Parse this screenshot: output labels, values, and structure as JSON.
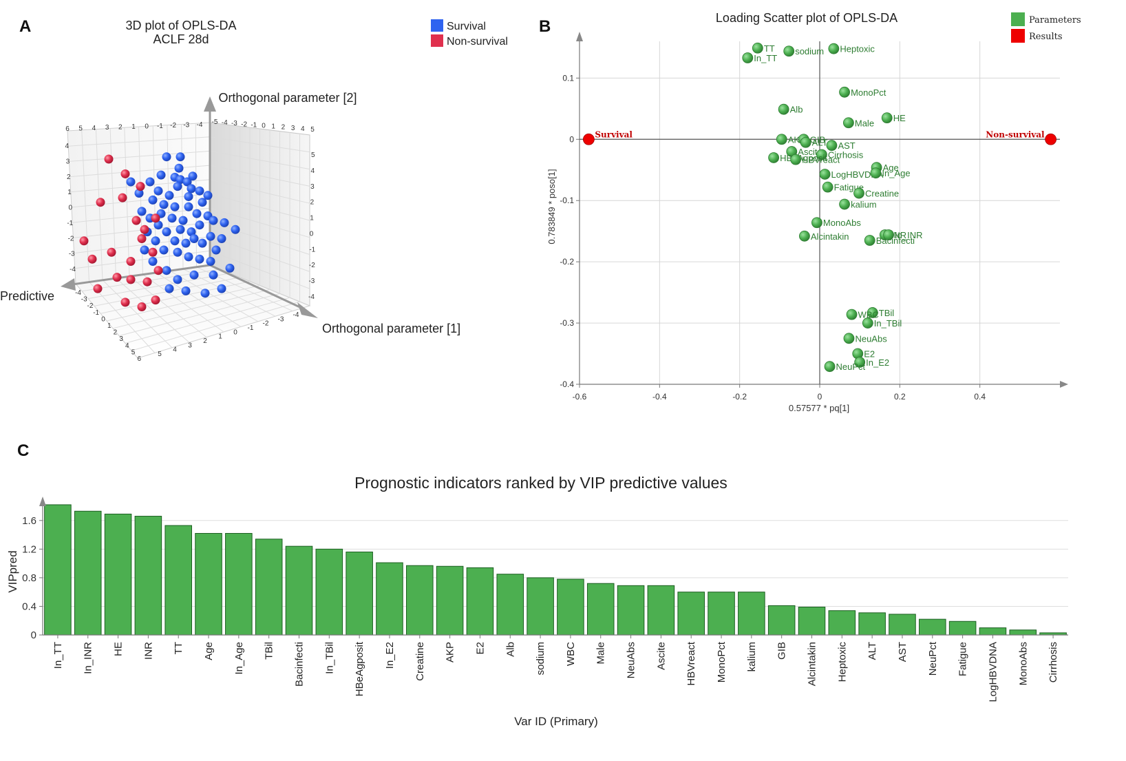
{
  "panels": {
    "a": "A",
    "b": "B",
    "c": "C"
  },
  "colors": {
    "survival": "#2f63f0",
    "non_survival": "#e0304e",
    "parameters": "#4caf50",
    "results": "#ee0000",
    "bar": "#4caf50"
  },
  "chart_data": [
    {
      "type": "scatter",
      "title": "3D plot of OPLS-DA",
      "subtitle": "ACLF 28d",
      "legend": [
        "Survival",
        "Non-survival"
      ],
      "axis_labels": {
        "vertical": "Orthogonal parameter [2]",
        "left": "Predictive",
        "right": "Orthogonal parameter [1]"
      },
      "back_top_ticks": [
        "6",
        "5",
        "4",
        "3",
        "2",
        "1",
        "0",
        "-1",
        "-2",
        "-3",
        "-4"
      ],
      "right_top_ticks": [
        "-5",
        "-4",
        "-3",
        "-2",
        "-1",
        "0",
        "1",
        "2",
        "3",
        "4",
        "5"
      ],
      "left_wall_ticks": [
        "4",
        "3",
        "2",
        "1",
        "0",
        "-1",
        "-2",
        "-3",
        "-4"
      ],
      "right_wall_ticks": [
        "5",
        "4",
        "3",
        "2",
        "1",
        "0",
        "-1",
        "-2",
        "-3",
        "-4"
      ],
      "floor_front_ticks": [
        "-4",
        "-3",
        "-2",
        "-1",
        "0",
        "1",
        "2",
        "3",
        "4",
        "5",
        "6"
      ],
      "floor_right_ticks": [
        "5",
        "4",
        "3",
        "2",
        "1",
        "0",
        "-1",
        "-2",
        "-3",
        "-4"
      ],
      "survival_points": [
        [
          0.56,
          0.62
        ],
        [
          0.65,
          0.52
        ],
        [
          0.62,
          0.44
        ],
        [
          0.66,
          0.42
        ],
        [
          0.64,
          0.36
        ],
        [
          0.71,
          0.4
        ],
        [
          0.75,
          0.45
        ],
        [
          0.74,
          0.34
        ],
        [
          0.8,
          0.32
        ],
        [
          0.72,
          0.27
        ],
        [
          0.82,
          0.22
        ],
        [
          0.72,
          0.18
        ],
        [
          0.78,
          0.12
        ],
        [
          0.86,
          0.1
        ],
        [
          0.9,
          0.06
        ],
        [
          0.68,
          0.06
        ],
        [
          0.62,
          0.18
        ],
        [
          0.58,
          0.28
        ],
        [
          0.54,
          0.2
        ],
        [
          0.5,
          0.32
        ],
        [
          0.46,
          0.24
        ],
        [
          0.52,
          0.12
        ],
        [
          0.6,
          0.08
        ],
        [
          0.66,
          -0.02
        ],
        [
          0.74,
          -0.04
        ],
        [
          0.8,
          0.02
        ],
        [
          0.88,
          -0.08
        ],
        [
          0.82,
          -0.14
        ],
        [
          0.76,
          -0.1
        ],
        [
          0.7,
          -0.14
        ],
        [
          0.62,
          -0.12
        ],
        [
          0.56,
          -0.04
        ],
        [
          0.5,
          0.02
        ],
        [
          0.44,
          0.08
        ],
        [
          0.42,
          -0.04
        ],
        [
          0.48,
          -0.12
        ],
        [
          0.54,
          -0.2
        ],
        [
          0.64,
          -0.22
        ],
        [
          0.72,
          -0.26
        ],
        [
          0.8,
          -0.28
        ],
        [
          0.88,
          -0.3
        ],
        [
          0.92,
          -0.2
        ],
        [
          0.96,
          -0.1
        ],
        [
          0.98,
          0.04
        ],
        [
          1.06,
          -0.02
        ],
        [
          1.02,
          -0.36
        ],
        [
          0.9,
          -0.42
        ],
        [
          0.76,
          -0.42
        ],
        [
          0.64,
          -0.46
        ],
        [
          0.56,
          -0.38
        ],
        [
          0.46,
          -0.3
        ],
        [
          0.4,
          -0.2
        ],
        [
          0.38,
          0.14
        ],
        [
          0.36,
          0.3
        ],
        [
          0.86,
          0.28
        ],
        [
          0.7,
          -0.56
        ],
        [
          0.84,
          -0.58
        ],
        [
          0.96,
          -0.54
        ],
        [
          0.3,
          0.4
        ],
        [
          0.66,
          0.62
        ],
        [
          0.52,
          0.46
        ],
        [
          0.44,
          0.4
        ],
        [
          0.58,
          -0.54
        ]
      ],
      "non_survival_points": [
        [
          0.14,
          0.6
        ],
        [
          0.26,
          0.47
        ],
        [
          0.37,
          0.36
        ],
        [
          0.08,
          0.22
        ],
        [
          -0.04,
          -0.12
        ],
        [
          0.02,
          -0.28
        ],
        [
          0.16,
          -0.22
        ],
        [
          0.2,
          -0.44
        ],
        [
          0.3,
          -0.46
        ],
        [
          0.3,
          -0.3
        ],
        [
          0.38,
          -0.1
        ],
        [
          0.42,
          -0.48
        ],
        [
          0.46,
          -0.22
        ],
        [
          0.5,
          -0.38
        ],
        [
          0.48,
          -0.64
        ],
        [
          0.26,
          -0.66
        ],
        [
          0.06,
          -0.54
        ],
        [
          0.38,
          -0.7
        ],
        [
          0.48,
          0.08
        ],
        [
          0.34,
          0.06
        ],
        [
          0.4,
          -0.02
        ],
        [
          0.24,
          0.26
        ]
      ]
    },
    {
      "type": "scatter",
      "title": "Loading Scatter plot of OPLS-DA",
      "xlabel": "0.57577 * pq[1]",
      "ylabel": "0.783849 * poso[1]",
      "xlim": [
        -0.6,
        0.6
      ],
      "ylim": [
        -0.4,
        0.16
      ],
      "x_ticks": [
        "-0.6",
        "-0.4",
        "-0.2",
        "0",
        "0.2",
        "0.4"
      ],
      "y_ticks": [
        "0.1",
        "0",
        "-0.1",
        "-0.2",
        "-0.3",
        "-0.4"
      ],
      "legend": [
        "Parameters",
        "Results"
      ],
      "results": [
        {
          "label": "Survival",
          "x": -0.577,
          "y": 0
        },
        {
          "label": "Non-survival",
          "x": 0.577,
          "y": 0
        }
      ],
      "parameters": [
        {
          "label": "TT",
          "x": -0.155,
          "y": 0.149
        },
        {
          "label": "In_TT",
          "x": -0.18,
          "y": 0.133
        },
        {
          "label": "sodium",
          "x": -0.077,
          "y": 0.144
        },
        {
          "label": "Heptoxic",
          "x": 0.035,
          "y": 0.148
        },
        {
          "label": "MonoPct",
          "x": 0.062,
          "y": 0.077
        },
        {
          "label": "Alb",
          "x": -0.09,
          "y": 0.049
        },
        {
          "label": "HE",
          "x": 0.168,
          "y": 0.035
        },
        {
          "label": "Male",
          "x": 0.072,
          "y": 0.027
        },
        {
          "label": "AKP",
          "x": -0.095,
          "y": 0.0
        },
        {
          "label": "GIB",
          "x": -0.04,
          "y": 0.0
        },
        {
          "label": "ALT",
          "x": -0.035,
          "y": -0.005
        },
        {
          "label": "AST",
          "x": 0.03,
          "y": -0.01
        },
        {
          "label": "Ascite",
          "x": -0.07,
          "y": -0.02
        },
        {
          "label": "Cirrhosis",
          "x": 0.005,
          "y": -0.025
        },
        {
          "label": "HBeAgposit",
          "x": -0.115,
          "y": -0.03
        },
        {
          "label": "HBVreact",
          "x": -0.06,
          "y": -0.033
        },
        {
          "label": "LogHBVDNA",
          "x": 0.013,
          "y": -0.057
        },
        {
          "label": "Age",
          "x": 0.142,
          "y": -0.046
        },
        {
          "label": "In_Age",
          "x": 0.14,
          "y": -0.055
        },
        {
          "label": "Fatigue",
          "x": 0.02,
          "y": -0.078
        },
        {
          "label": "Creatine",
          "x": 0.098,
          "y": -0.088
        },
        {
          "label": "kalium",
          "x": 0.062,
          "y": -0.106
        },
        {
          "label": "MonoAbs",
          "x": -0.007,
          "y": -0.136
        },
        {
          "label": "INR",
          "x": 0.163,
          "y": -0.156
        },
        {
          "label": "In_INR",
          "x": 0.172,
          "y": -0.156
        },
        {
          "label": "Alcintakin",
          "x": -0.038,
          "y": -0.158
        },
        {
          "label": "Bacinfecti",
          "x": 0.125,
          "y": -0.165
        },
        {
          "label": "TBil",
          "x": 0.132,
          "y": -0.283
        },
        {
          "label": "WBC",
          "x": 0.08,
          "y": -0.286
        },
        {
          "label": "In_TBil",
          "x": 0.12,
          "y": -0.3
        },
        {
          "label": "NeuAbs",
          "x": 0.073,
          "y": -0.325
        },
        {
          "label": "E2",
          "x": 0.095,
          "y": -0.35
        },
        {
          "label": "In_E2",
          "x": 0.1,
          "y": -0.364
        },
        {
          "label": "NeuPct",
          "x": 0.025,
          "y": -0.371
        }
      ]
    },
    {
      "type": "bar",
      "title": "Prognostic indicators ranked by VIP predictive values",
      "xlabel": "Var ID (Primary)",
      "ylabel": "VIPpred",
      "ylim": [
        0,
        1.8
      ],
      "y_ticks": [
        "0",
        "0.4",
        "0.8",
        "1.2",
        "1.6"
      ],
      "categories": [
        "In_TT",
        "In_INR",
        "HE",
        "INR",
        "TT",
        "Age",
        "In_Age",
        "TBil",
        "Bacinfecti",
        "In_TBil",
        "HBeAgposit",
        "In_E2",
        "Creatine",
        "AKP",
        "E2",
        "Alb",
        "sodium",
        "WBC",
        "Male",
        "NeuAbs",
        "Ascite",
        "HBVreact",
        "MonoPct",
        "kalium",
        "GIB",
        "Alcintakin",
        "Heptoxic",
        "ALT",
        "AST",
        "NeuPct",
        "Fatigue",
        "LogHBVDNA",
        "MonoAbs",
        "Cirrhosis"
      ],
      "values": [
        1.82,
        1.73,
        1.69,
        1.66,
        1.53,
        1.42,
        1.42,
        1.34,
        1.24,
        1.2,
        1.16,
        1.01,
        0.97,
        0.96,
        0.94,
        0.85,
        0.8,
        0.78,
        0.72,
        0.69,
        0.69,
        0.6,
        0.6,
        0.6,
        0.41,
        0.39,
        0.34,
        0.31,
        0.29,
        0.22,
        0.19,
        0.1,
        0.07,
        0.03
      ]
    }
  ]
}
